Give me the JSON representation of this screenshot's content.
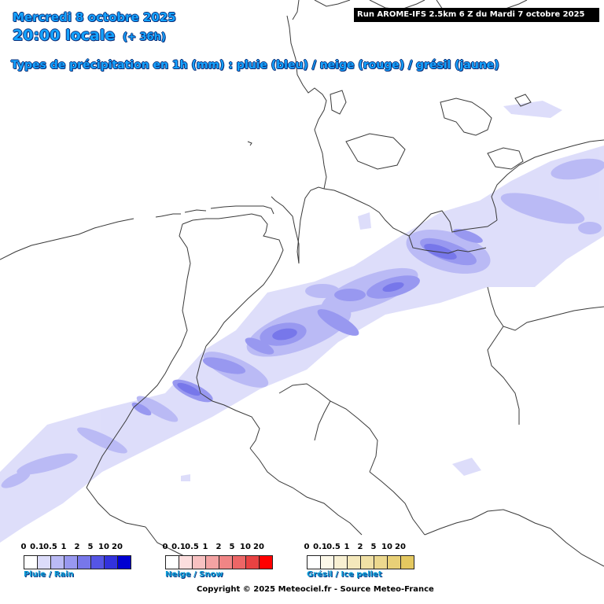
{
  "header": {
    "date": "Mercredi 8 octobre 2025",
    "time": "20:00 locale",
    "offset": "(+ 36h)",
    "subtitle": "Types de précipitation en 1h (mm) : pluie (bleu) / neige (rouge) / grésil (jaune)",
    "run": "Run AROME-IFS 2.5km 6 Z du Mardi 7 octobre 2025"
  },
  "legend": {
    "thresholds": [
      "0",
      "0.1",
      "0.5",
      "1",
      "2",
      "5",
      "10",
      "20"
    ],
    "rain": {
      "label": "Pluie / Rain",
      "colors": [
        "#ffffff",
        "#dcdcfa",
        "#babaf5",
        "#9898f0",
        "#7777ea",
        "#5555e5",
        "#3232dd",
        "#0000d2"
      ]
    },
    "snow": {
      "label": "Neige / Snow",
      "colors": [
        "#ffffff",
        "#fcdede",
        "#f8c1c1",
        "#f4a3a3",
        "#f08585",
        "#ec6666",
        "#e84242",
        "#ff0000"
      ]
    },
    "ice": {
      "label": "Grésil / Ice pellet",
      "colors": [
        "#ffffff",
        "#fcf8e8",
        "#f8f0d2",
        "#f4e8bb",
        "#f0e0a5",
        "#ecd88e",
        "#e8d077",
        "#e4c860"
      ]
    }
  },
  "footer": {
    "copyright": "Copyright © 2025 Meteociel.fr - Source Meteo-France"
  },
  "map": {
    "precip_colors": {
      "light": "#dcdcfa",
      "moderate": "#babaf5",
      "heavy": "#9898f0",
      "strong": "#7777ea"
    },
    "border_color": "#3a3a3a"
  }
}
